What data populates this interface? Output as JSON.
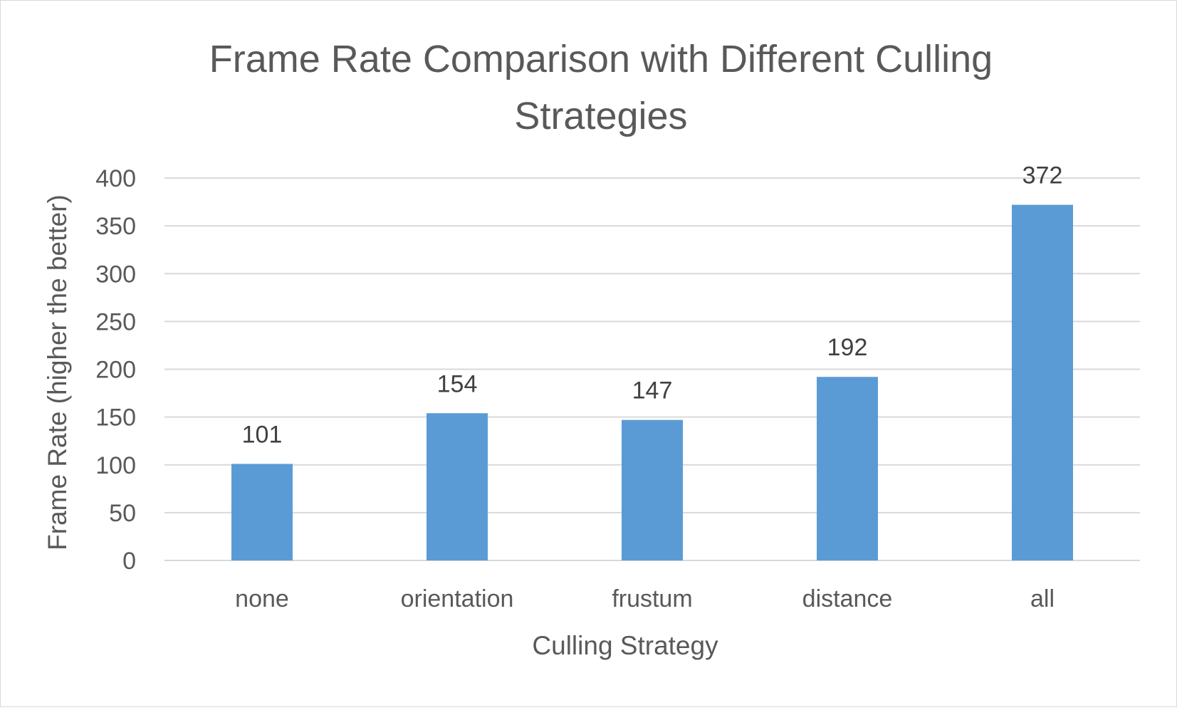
{
  "chart_data": {
    "type": "bar",
    "title_lines": [
      "Frame Rate Comparison with Different Culling",
      "Strategies"
    ],
    "xlabel": "Culling Strategy",
    "ylabel": "Frame Rate (higher the better)",
    "categories": [
      "none",
      "orientation",
      "frustum",
      "distance",
      "all"
    ],
    "values": [
      101,
      154,
      147,
      192,
      372
    ],
    "data_labels": [
      "101",
      "154",
      "147",
      "192",
      "372"
    ],
    "ylim": [
      0,
      400
    ],
    "y_ticks": [
      0,
      50,
      100,
      150,
      200,
      250,
      300,
      350,
      400
    ],
    "grid": true,
    "legend": "none",
    "colors": {
      "bar": "#5b9bd5",
      "grid": "#d9d9d9",
      "text": "#595959",
      "data_label": "#404040"
    }
  }
}
